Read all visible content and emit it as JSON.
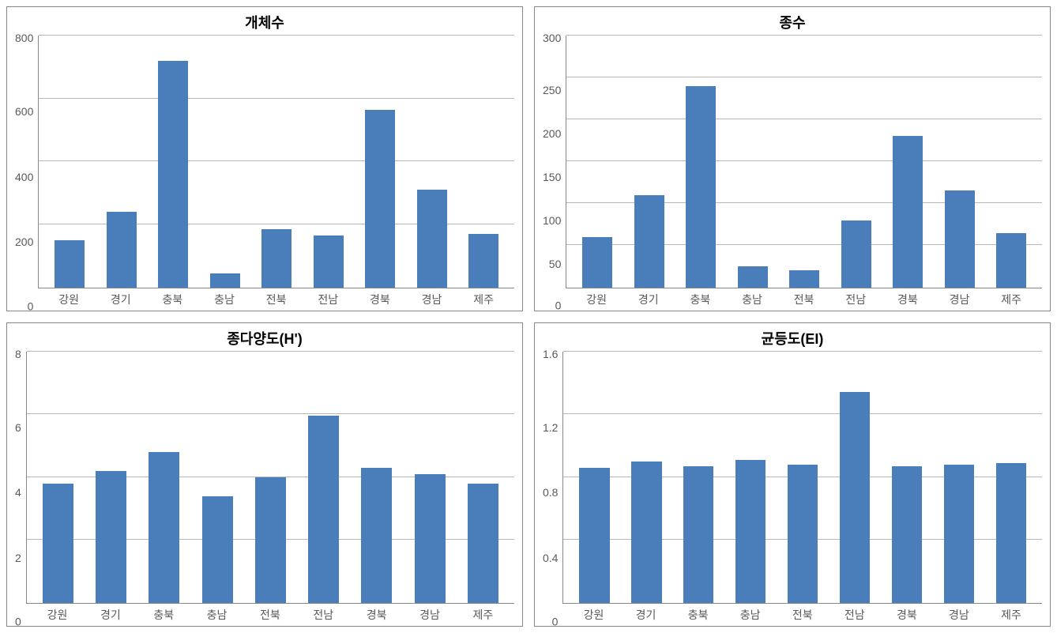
{
  "layout": {
    "grid": "2x2",
    "panel_border_color": "#888888",
    "background_color": "#ffffff"
  },
  "categories": [
    "강원",
    "경기",
    "충북",
    "충남",
    "전북",
    "전남",
    "경북",
    "경남",
    "제주"
  ],
  "axis_label_color": "#595959",
  "axis_label_fontsize": 14,
  "title_fontsize": 18,
  "title_color": "#000000",
  "grid_color": "#b7b7b7",
  "bar_color": "#4a7ebb",
  "bar_width": 0.58,
  "charts": [
    {
      "id": "population",
      "title": "개체수",
      "type": "bar",
      "ylim": [
        0,
        800
      ],
      "ytick_step": 200,
      "yticks": [
        800,
        600,
        400,
        200,
        0
      ],
      "values": [
        150,
        240,
        720,
        45,
        185,
        165,
        565,
        310,
        170
      ]
    },
    {
      "id": "species",
      "title": "종수",
      "type": "bar",
      "ylim": [
        0,
        300
      ],
      "ytick_step": 50,
      "yticks": [
        300,
        250,
        200,
        150,
        100,
        50,
        0
      ],
      "values": [
        60,
        110,
        240,
        25,
        20,
        80,
        180,
        115,
        65
      ]
    },
    {
      "id": "diversity",
      "title": "종다양도(H')",
      "type": "bar",
      "ylim": [
        0,
        8
      ],
      "ytick_step": 2,
      "yticks": [
        8,
        6,
        4,
        2,
        0
      ],
      "values": [
        3.8,
        4.2,
        4.8,
        3.4,
        4.0,
        5.95,
        4.3,
        4.1,
        3.8
      ]
    },
    {
      "id": "evenness",
      "title": "균등도(EI)",
      "type": "bar",
      "ylim": [
        0,
        1.6
      ],
      "ytick_step": 0.4,
      "yticks": [
        1.6,
        1.2,
        0.8,
        0.4,
        0
      ],
      "values": [
        0.86,
        0.9,
        0.87,
        0.91,
        0.88,
        1.34,
        0.87,
        0.88,
        0.89
      ]
    }
  ]
}
